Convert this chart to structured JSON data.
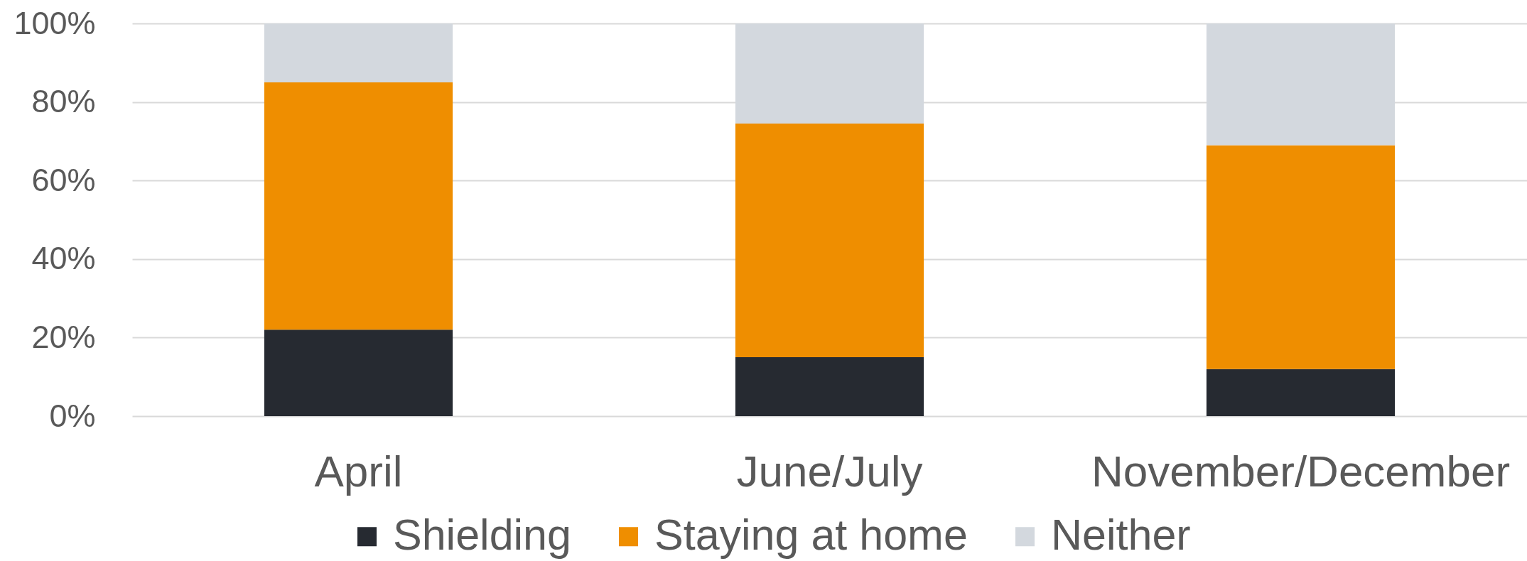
{
  "chart_data": {
    "type": "bar",
    "stacked": true,
    "categories": [
      "April",
      "June/July",
      "November/December"
    ],
    "series": [
      {
        "name": "Shielding",
        "color": "#262a31",
        "values": [
          22,
          15,
          12
        ]
      },
      {
        "name": "Staying at home",
        "color": "#ef8e00",
        "values": [
          63,
          59.5,
          57
        ]
      },
      {
        "name": "Neither",
        "color": "#d3d8de",
        "values": [
          15,
          25.5,
          31
        ]
      }
    ],
    "ylim": [
      0,
      100
    ],
    "yticks": [
      {
        "value": 0,
        "label": "0%"
      },
      {
        "value": 20,
        "label": "20%"
      },
      {
        "value": 40,
        "label": "40%"
      },
      {
        "value": 60,
        "label": "60%"
      },
      {
        "value": 80,
        "label": "80%"
      },
      {
        "value": 100,
        "label": "100%"
      }
    ],
    "grid": "y",
    "legend": "bottom"
  }
}
